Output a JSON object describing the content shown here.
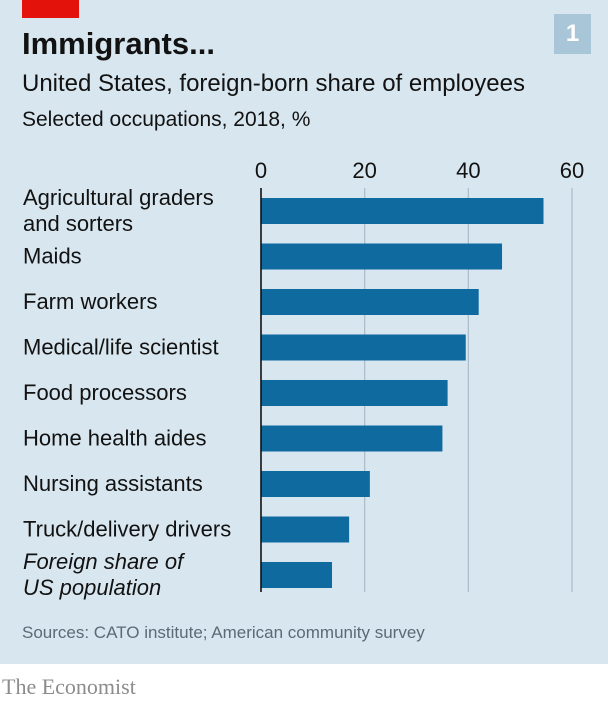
{
  "header": {
    "title": "Immigrants...",
    "subtitle": "United States, foreign-born share of employees",
    "subsubtitle": "Selected occupations, 2018, %",
    "badge": "1"
  },
  "footer": {
    "source": "Sources: CATO institute; American community survey",
    "brand": "The Economist"
  },
  "colors": {
    "background": "#d8e6ef",
    "bar": "#0f6aa0",
    "gridline": "#a9bcc8",
    "accent": "#e3120b"
  },
  "chart_data": {
    "type": "bar",
    "orientation": "horizontal",
    "categories": [
      [
        "Agricultural graders",
        "and sorters"
      ],
      [
        "Maids"
      ],
      [
        "Farm workers"
      ],
      [
        "Medical/life scientist"
      ],
      [
        "Food processors"
      ],
      [
        "Home health aides"
      ],
      [
        "Nursing assistants"
      ],
      [
        "Truck/delivery drivers"
      ],
      [
        "Foreign share of",
        "US population"
      ]
    ],
    "italic_categories": [
      8
    ],
    "values": [
      54.5,
      46.5,
      42,
      39.5,
      36,
      35,
      21,
      17,
      13.7
    ],
    "xlim": [
      0,
      60
    ],
    "xticks": [
      "0",
      "20",
      "40",
      "60"
    ],
    "tick_values": [
      0,
      20,
      40,
      60
    ],
    "grid": true
  }
}
